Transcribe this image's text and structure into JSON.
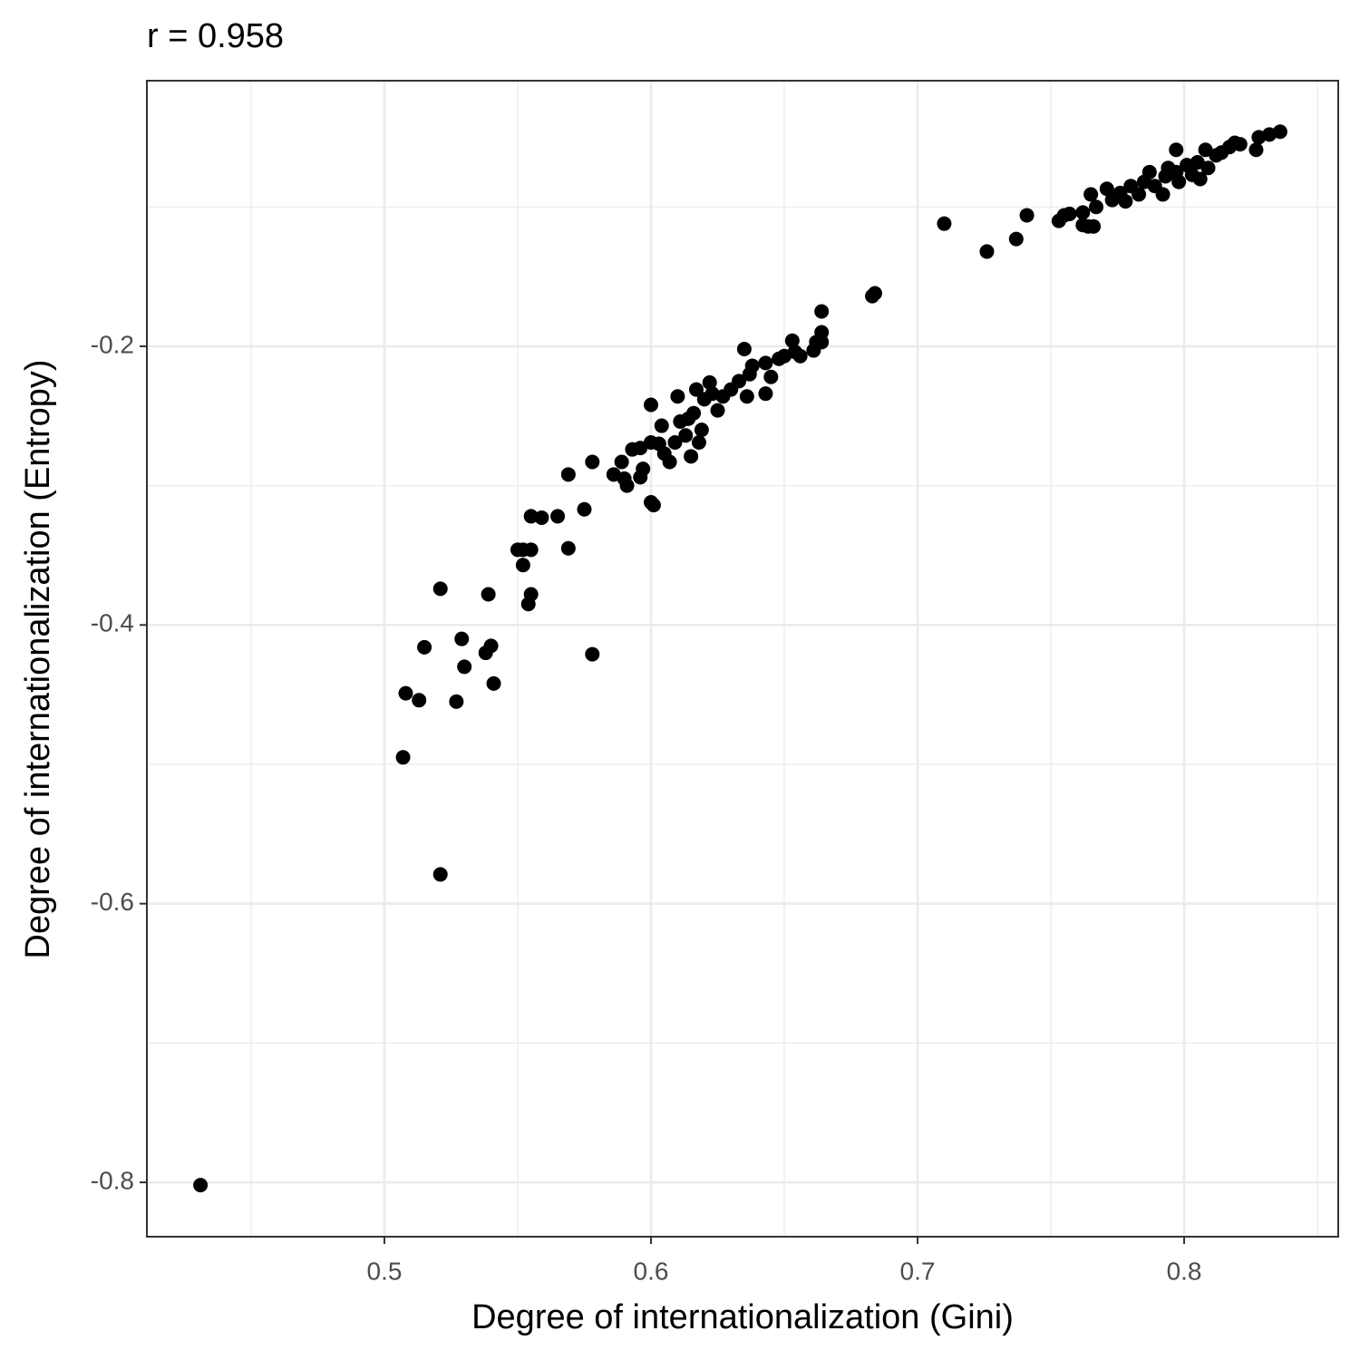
{
  "chart_data": {
    "type": "scatter",
    "title": "r = 0.958",
    "x_label": "Degree of internationalization (Gini)",
    "y_label": "Degree of internationalization (Entropy)",
    "color": "#000000",
    "xlim": [
      0.4109,
      0.8578
    ],
    "ylim": [
      -0.839,
      -0.0094
    ],
    "xticks": [
      0.5,
      0.6,
      0.7,
      0.8
    ],
    "yticks": [
      -0.8,
      -0.6,
      -0.4,
      -0.2
    ],
    "x_minor_ticks": [
      0.45,
      0.55,
      0.65,
      0.75,
      0.85
    ],
    "y_minor_ticks": [
      -0.7,
      -0.5,
      -0.3,
      -0.1
    ],
    "grid": true,
    "x": [
      0.431,
      0.521,
      0.507,
      0.508,
      0.513,
      0.515,
      0.521,
      0.527,
      0.529,
      0.53,
      0.538,
      0.54,
      0.541,
      0.539,
      0.55,
      0.552,
      0.555,
      0.552,
      0.554,
      0.555,
      0.555,
      0.559,
      0.565,
      0.569,
      0.569,
      0.575,
      0.578,
      0.578,
      0.586,
      0.589,
      0.59,
      0.591,
      0.593,
      0.596,
      0.596,
      0.597,
      0.6,
      0.601,
      0.6,
      0.6,
      0.603,
      0.604,
      0.605,
      0.607,
      0.609,
      0.61,
      0.611,
      0.613,
      0.614,
      0.615,
      0.616,
      0.617,
      0.618,
      0.619,
      0.62,
      0.622,
      0.623,
      0.625,
      0.627,
      0.63,
      0.633,
      0.635,
      0.636,
      0.637,
      0.638,
      0.643,
      0.643,
      0.645,
      0.648,
      0.65,
      0.653,
      0.654,
      0.656,
      0.661,
      0.662,
      0.664,
      0.664,
      0.664,
      0.683,
      0.684,
      0.71,
      0.726,
      0.737,
      0.741,
      0.753,
      0.755,
      0.757,
      0.762,
      0.764,
      0.766,
      0.762,
      0.765,
      0.767,
      0.771,
      0.773,
      0.776,
      0.778,
      0.78,
      0.783,
      0.785,
      0.787,
      0.789,
      0.792,
      0.793,
      0.794,
      0.797,
      0.797,
      0.798,
      0.801,
      0.803,
      0.805,
      0.806,
      0.808,
      0.809,
      0.812,
      0.814,
      0.817,
      0.819,
      0.821,
      0.827,
      0.828,
      0.832,
      0.836
    ],
    "values": [
      -0.802,
      -0.579,
      -0.495,
      -0.449,
      -0.454,
      -0.416,
      -0.374,
      -0.455,
      -0.41,
      -0.43,
      -0.42,
      -0.415,
      -0.442,
      -0.378,
      -0.346,
      -0.346,
      -0.346,
      -0.357,
      -0.385,
      -0.378,
      -0.322,
      -0.323,
      -0.322,
      -0.345,
      -0.292,
      -0.317,
      -0.283,
      -0.421,
      -0.292,
      -0.283,
      -0.295,
      -0.3,
      -0.274,
      -0.273,
      -0.294,
      -0.288,
      -0.312,
      -0.314,
      -0.242,
      -0.269,
      -0.27,
      -0.257,
      -0.277,
      -0.283,
      -0.269,
      -0.236,
      -0.254,
      -0.264,
      -0.252,
      -0.279,
      -0.248,
      -0.231,
      -0.269,
      -0.26,
      -0.238,
      -0.226,
      -0.234,
      -0.246,
      -0.236,
      -0.231,
      -0.225,
      -0.202,
      -0.236,
      -0.22,
      -0.214,
      -0.234,
      -0.212,
      -0.222,
      -0.209,
      -0.207,
      -0.196,
      -0.204,
      -0.207,
      -0.203,
      -0.197,
      -0.19,
      -0.197,
      -0.175,
      -0.164,
      -0.162,
      -0.112,
      -0.132,
      -0.123,
      -0.106,
      -0.11,
      -0.106,
      -0.105,
      -0.113,
      -0.114,
      -0.114,
      -0.104,
      -0.091,
      -0.1,
      -0.087,
      -0.095,
      -0.09,
      -0.096,
      -0.085,
      -0.091,
      -0.082,
      -0.075,
      -0.085,
      -0.091,
      -0.078,
      -0.072,
      -0.075,
      -0.059,
      -0.082,
      -0.07,
      -0.077,
      -0.068,
      -0.08,
      -0.059,
      -0.072,
      -0.063,
      -0.061,
      -0.057,
      -0.054,
      -0.055,
      -0.059,
      -0.05,
      -0.048,
      -0.046
    ]
  }
}
